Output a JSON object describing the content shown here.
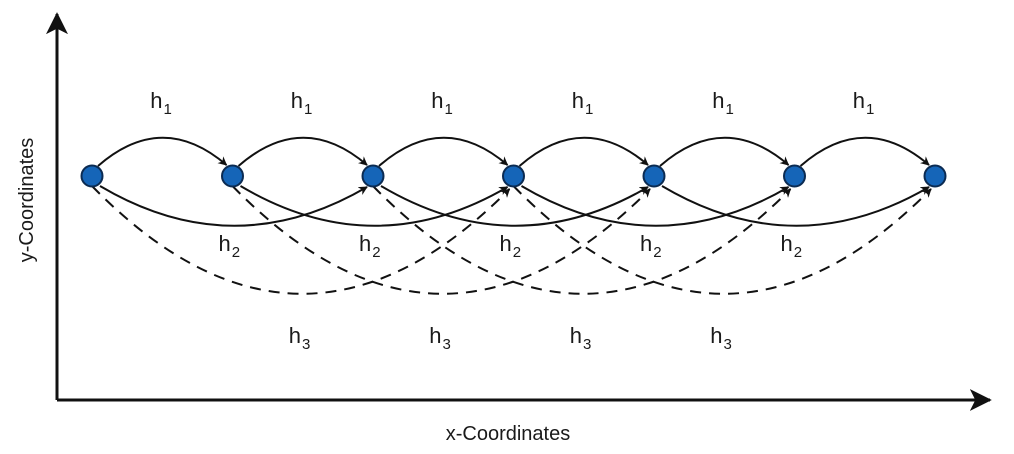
{
  "axes": {
    "x_label": "x-Coordinates",
    "y_label": "y-Coordinates"
  },
  "node_count": 7,
  "node_color": "#1565b8",
  "line_color": "#111111",
  "arcs": {
    "h1": {
      "label": "h",
      "subscript": "1",
      "step": 1,
      "style": "solid",
      "count": 6
    },
    "h2": {
      "label": "h",
      "subscript": "2",
      "step": 2,
      "style": "solid",
      "count": 5
    },
    "h3": {
      "label": "h",
      "subscript": "3",
      "step": 3,
      "style": "dashed",
      "count": 4
    }
  }
}
